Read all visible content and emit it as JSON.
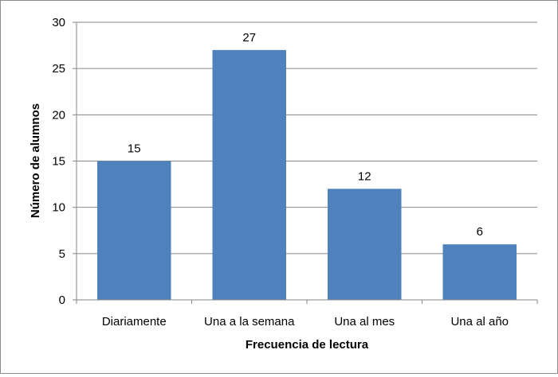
{
  "chart_data": {
    "type": "bar",
    "categories": [
      "Diariamente",
      "Una a la semana",
      "Una al mes",
      "Una al año"
    ],
    "values": [
      15,
      27,
      12,
      6
    ],
    "title": "",
    "xlabel": "Frecuencia de lectura",
    "ylabel": "Número de alumnos",
    "ylim": [
      0,
      30
    ],
    "yticks": [
      0,
      5,
      10,
      15,
      20,
      25,
      30
    ],
    "grid": true,
    "legend": "none",
    "data_labels": true,
    "bar_color": "#4f81bd",
    "grid_color": "#868686"
  }
}
